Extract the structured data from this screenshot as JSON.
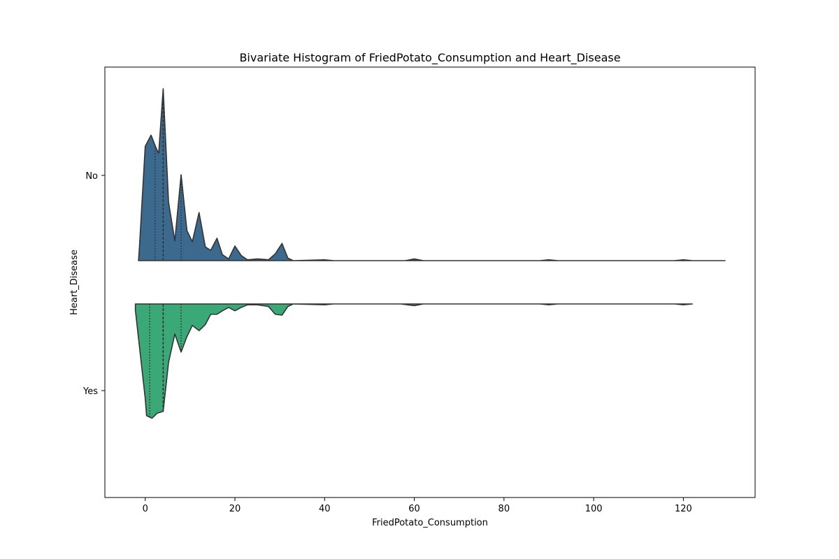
{
  "chart_data": {
    "type": "violin",
    "title": "Bivariate Histogram of FriedPotato_Consumption and Heart_Disease",
    "xlabel": "FriedPotato_Consumption",
    "ylabel": "Heart_Disease",
    "xlim": [
      -9,
      136
    ],
    "xticks": [
      0,
      20,
      40,
      60,
      80,
      100,
      120
    ],
    "categories": [
      "No",
      "Yes"
    ],
    "orientation": "horizontal",
    "split": true,
    "inner": "quartile",
    "series": [
      {
        "name": "No",
        "color": "#3b6a8e",
        "side": "top",
        "density": [
          [
            -1.5,
            0.0
          ],
          [
            -1.3,
            0.15
          ],
          [
            0,
            1.33
          ],
          [
            1.3,
            1.46
          ],
          [
            2.5,
            1.3
          ],
          [
            3.0,
            1.25
          ],
          [
            4.0,
            2.0
          ],
          [
            5.2,
            0.68
          ],
          [
            6.6,
            0.23
          ],
          [
            8.0,
            1.0
          ],
          [
            9.3,
            0.35
          ],
          [
            10.5,
            0.22
          ],
          [
            12.0,
            0.56
          ],
          [
            13.4,
            0.16
          ],
          [
            14.6,
            0.12
          ],
          [
            16.0,
            0.26
          ],
          [
            17.2,
            0.07
          ],
          [
            18.6,
            0.02
          ],
          [
            20.0,
            0.17
          ],
          [
            21.4,
            0.06
          ],
          [
            22.8,
            0.01
          ],
          [
            25.0,
            0.02
          ],
          [
            27.5,
            0.01
          ],
          [
            29.0,
            0.08
          ],
          [
            30.5,
            0.2
          ],
          [
            31.8,
            0.03
          ],
          [
            33.0,
            0.0
          ],
          [
            40.0,
            0.01
          ],
          [
            42.0,
            0.0
          ],
          [
            58.0,
            0.0
          ],
          [
            60.0,
            0.02
          ],
          [
            62.0,
            0.0
          ],
          [
            88.0,
            0.0
          ],
          [
            90.0,
            0.01
          ],
          [
            92.0,
            0.0
          ],
          [
            118.0,
            0.0
          ],
          [
            120.0,
            0.01
          ],
          [
            122.0,
            0.0
          ],
          [
            129.3,
            0.0
          ]
        ],
        "quartiles": [
          2.2,
          4.0,
          8.0
        ]
      },
      {
        "name": "Yes",
        "color": "#3ba878",
        "side": "bottom",
        "density": [
          [
            -2.2,
            0.0
          ],
          [
            -2.2,
            0.07
          ],
          [
            0,
            1.1
          ],
          [
            0.3,
            1.3
          ],
          [
            1.5,
            1.33
          ],
          [
            2.7,
            1.27
          ],
          [
            4.0,
            1.25
          ],
          [
            5.2,
            0.68
          ],
          [
            6.6,
            0.35
          ],
          [
            8.0,
            0.56
          ],
          [
            9.3,
            0.38
          ],
          [
            10.5,
            0.25
          ],
          [
            12.0,
            0.31
          ],
          [
            13.4,
            0.24
          ],
          [
            14.6,
            0.12
          ],
          [
            16.0,
            0.12
          ],
          [
            17.2,
            0.08
          ],
          [
            18.6,
            0.04
          ],
          [
            20.0,
            0.08
          ],
          [
            21.4,
            0.04
          ],
          [
            22.8,
            0.01
          ],
          [
            25.0,
            0.01
          ],
          [
            27.5,
            0.03
          ],
          [
            29.0,
            0.12
          ],
          [
            30.5,
            0.13
          ],
          [
            31.8,
            0.03
          ],
          [
            33.0,
            0.0
          ],
          [
            40.0,
            0.01
          ],
          [
            42.0,
            0.0
          ],
          [
            57.0,
            0.0
          ],
          [
            60.0,
            0.02
          ],
          [
            62.0,
            0.0
          ],
          [
            88.0,
            0.0
          ],
          [
            90.0,
            0.01
          ],
          [
            92.0,
            0.0
          ],
          [
            118.0,
            0.0
          ],
          [
            120.0,
            0.01
          ],
          [
            122.0,
            0.0
          ]
        ],
        "quartiles": [
          1.0,
          4.0,
          8.0
        ]
      }
    ],
    "legend": "none",
    "grid": false
  }
}
